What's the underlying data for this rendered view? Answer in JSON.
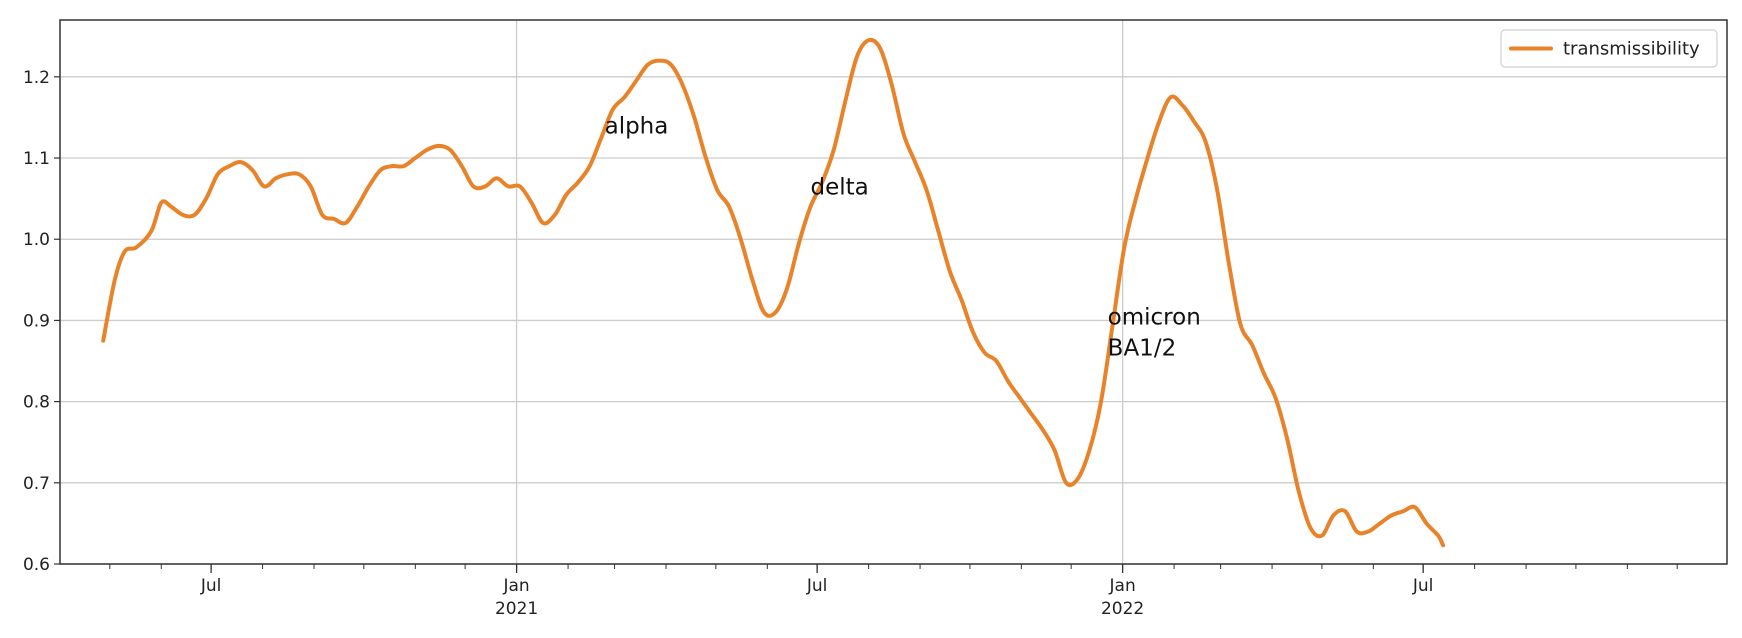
{
  "chart_data": {
    "type": "line",
    "title": "",
    "xlabel": "",
    "ylabel": "",
    "ylim": [
      0.6,
      1.27
    ],
    "xlim": [
      "2020-04-01",
      "2022-12-31"
    ],
    "grid": true,
    "legend_position": "top-right",
    "x_ticks": [
      {
        "date": "2020-07-01",
        "label": "Jul",
        "sublabel": ""
      },
      {
        "date": "2021-01-01",
        "label": "Jan",
        "sublabel": "2021"
      },
      {
        "date": "2021-07-01",
        "label": "Jul",
        "sublabel": ""
      },
      {
        "date": "2022-01-01",
        "label": "Jan",
        "sublabel": "2022"
      },
      {
        "date": "2022-07-01",
        "label": "Jul",
        "sublabel": ""
      }
    ],
    "y_ticks": [
      0.6,
      0.7,
      0.8,
      0.9,
      1.0,
      1.1,
      1.2
    ],
    "series": [
      {
        "name": "transmissibility",
        "color": "#E8832A",
        "points": [
          [
            "2020-04-27",
            0.875
          ],
          [
            "2020-05-04",
            0.95
          ],
          [
            "2020-05-10",
            0.985
          ],
          [
            "2020-05-17",
            0.99
          ],
          [
            "2020-05-26",
            1.01
          ],
          [
            "2020-06-01",
            1.045
          ],
          [
            "2020-06-07",
            1.04
          ],
          [
            "2020-06-14",
            1.03
          ],
          [
            "2020-06-21",
            1.03
          ],
          [
            "2020-06-28",
            1.05
          ],
          [
            "2020-07-05",
            1.08
          ],
          [
            "2020-07-12",
            1.09
          ],
          [
            "2020-07-19",
            1.095
          ],
          [
            "2020-07-26",
            1.085
          ],
          [
            "2020-08-02",
            1.065
          ],
          [
            "2020-08-09",
            1.075
          ],
          [
            "2020-08-16",
            1.08
          ],
          [
            "2020-08-23",
            1.08
          ],
          [
            "2020-08-30",
            1.065
          ],
          [
            "2020-09-06",
            1.03
          ],
          [
            "2020-09-13",
            1.025
          ],
          [
            "2020-09-20",
            1.02
          ],
          [
            "2020-09-27",
            1.04
          ],
          [
            "2020-10-04",
            1.065
          ],
          [
            "2020-10-11",
            1.085
          ],
          [
            "2020-10-18",
            1.09
          ],
          [
            "2020-10-25",
            1.09
          ],
          [
            "2020-11-01",
            1.1
          ],
          [
            "2020-11-08",
            1.11
          ],
          [
            "2020-11-15",
            1.115
          ],
          [
            "2020-11-22",
            1.11
          ],
          [
            "2020-11-29",
            1.09
          ],
          [
            "2020-12-06",
            1.065
          ],
          [
            "2020-12-13",
            1.065
          ],
          [
            "2020-12-20",
            1.075
          ],
          [
            "2020-12-27",
            1.065
          ],
          [
            "2021-01-03",
            1.065
          ],
          [
            "2021-01-10",
            1.045
          ],
          [
            "2021-01-17",
            1.02
          ],
          [
            "2021-01-24",
            1.03
          ],
          [
            "2021-01-31",
            1.055
          ],
          [
            "2021-02-07",
            1.07
          ],
          [
            "2021-02-14",
            1.09
          ],
          [
            "2021-02-21",
            1.125
          ],
          [
            "2021-02-28",
            1.16
          ],
          [
            "2021-03-07",
            1.175
          ],
          [
            "2021-03-14",
            1.195
          ],
          [
            "2021-03-21",
            1.215
          ],
          [
            "2021-03-28",
            1.22
          ],
          [
            "2021-04-04",
            1.215
          ],
          [
            "2021-04-11",
            1.19
          ],
          [
            "2021-04-18",
            1.15
          ],
          [
            "2021-04-25",
            1.1
          ],
          [
            "2021-05-02",
            1.06
          ],
          [
            "2021-05-09",
            1.04
          ],
          [
            "2021-05-16",
            1.0
          ],
          [
            "2021-05-23",
            0.95
          ],
          [
            "2021-05-30",
            0.91
          ],
          [
            "2021-06-06",
            0.91
          ],
          [
            "2021-06-13",
            0.94
          ],
          [
            "2021-06-20",
            0.995
          ],
          [
            "2021-06-27",
            1.04
          ],
          [
            "2021-07-04",
            1.07
          ],
          [
            "2021-07-11",
            1.11
          ],
          [
            "2021-07-18",
            1.17
          ],
          [
            "2021-07-25",
            1.225
          ],
          [
            "2021-08-01",
            1.245
          ],
          [
            "2021-08-08",
            1.235
          ],
          [
            "2021-08-15",
            1.19
          ],
          [
            "2021-08-22",
            1.13
          ],
          [
            "2021-08-29",
            1.095
          ],
          [
            "2021-09-05",
            1.06
          ],
          [
            "2021-09-12",
            1.01
          ],
          [
            "2021-09-19",
            0.96
          ],
          [
            "2021-09-26",
            0.925
          ],
          [
            "2021-10-03",
            0.885
          ],
          [
            "2021-10-10",
            0.86
          ],
          [
            "2021-10-17",
            0.85
          ],
          [
            "2021-10-24",
            0.825
          ],
          [
            "2021-10-31",
            0.805
          ],
          [
            "2021-11-07",
            0.785
          ],
          [
            "2021-11-14",
            0.765
          ],
          [
            "2021-11-21",
            0.74
          ],
          [
            "2021-11-28",
            0.7
          ],
          [
            "2021-12-05",
            0.705
          ],
          [
            "2021-12-12",
            0.74
          ],
          [
            "2021-12-19",
            0.8
          ],
          [
            "2021-12-26",
            0.895
          ],
          [
            "2022-01-02",
            0.99
          ],
          [
            "2022-01-09",
            1.05
          ],
          [
            "2022-01-16",
            1.1
          ],
          [
            "2022-01-23",
            1.145
          ],
          [
            "2022-01-30",
            1.175
          ],
          [
            "2022-02-06",
            1.165
          ],
          [
            "2022-02-13",
            1.145
          ],
          [
            "2022-02-20",
            1.12
          ],
          [
            "2022-02-27",
            1.06
          ],
          [
            "2022-03-06",
            0.97
          ],
          [
            "2022-03-13",
            0.895
          ],
          [
            "2022-03-20",
            0.87
          ],
          [
            "2022-03-27",
            0.835
          ],
          [
            "2022-04-03",
            0.805
          ],
          [
            "2022-04-10",
            0.755
          ],
          [
            "2022-04-17",
            0.69
          ],
          [
            "2022-04-24",
            0.645
          ],
          [
            "2022-05-01",
            0.635
          ],
          [
            "2022-05-08",
            0.66
          ],
          [
            "2022-05-15",
            0.665
          ],
          [
            "2022-05-22",
            0.64
          ],
          [
            "2022-05-29",
            0.64
          ],
          [
            "2022-06-05",
            0.65
          ],
          [
            "2022-06-12",
            0.66
          ],
          [
            "2022-06-19",
            0.665
          ],
          [
            "2022-06-26",
            0.67
          ],
          [
            "2022-07-03",
            0.65
          ],
          [
            "2022-07-10",
            0.635
          ],
          [
            "2022-07-13",
            0.623
          ]
        ]
      }
    ],
    "annotations": [
      {
        "text": "alpha",
        "date": "2021-02-23",
        "y": 1.13
      },
      {
        "text": "delta",
        "date": "2021-06-27",
        "y": 1.055
      },
      {
        "text": "omicron\nBA1/2",
        "date": "2021-12-23",
        "y": 0.895
      }
    ]
  }
}
